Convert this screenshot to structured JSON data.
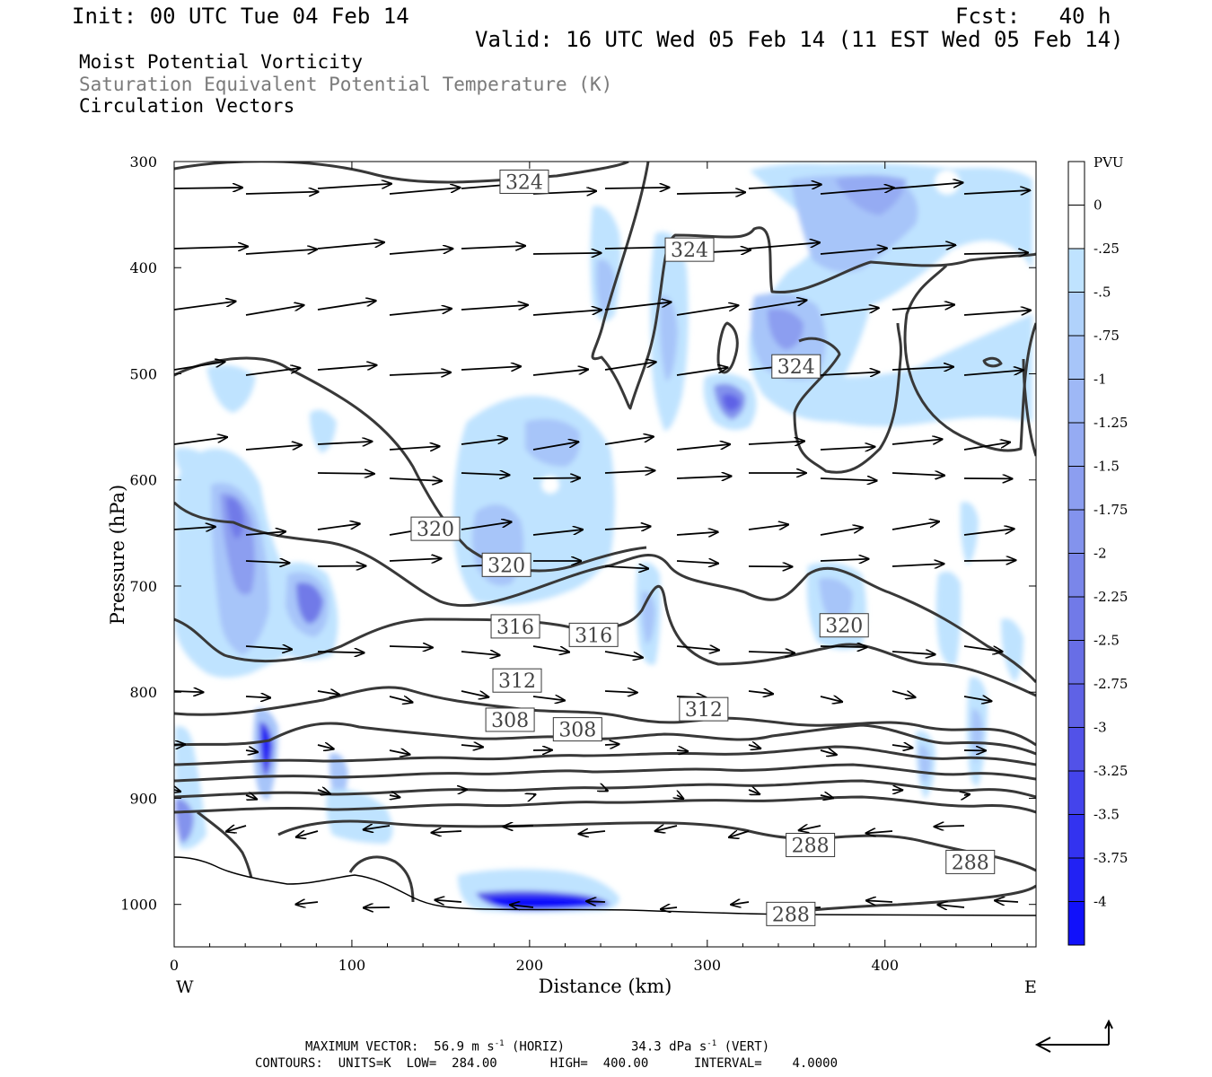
{
  "header": {
    "init": "Init: 00 UTC Tue 04 Feb 14",
    "fcst": "Fcst:   40 h",
    "valid": "Valid: 16 UTC Wed 05 Feb 14 (11 EST Wed 05 Feb 14)",
    "field1": "Moist Potential Vorticity",
    "field2": "Saturation Equivalent Potential Temperature (K)",
    "field3": "Circulation Vectors"
  },
  "chart_data": {
    "type": "cross-section",
    "xlabel": "Distance (km)",
    "ylabel": "Pressure (hPa)",
    "x_ticks": [
      0,
      100,
      200,
      300,
      400
    ],
    "y_ticks": [
      300,
      400,
      500,
      600,
      700,
      800,
      900,
      1000
    ],
    "xlim": [
      0,
      485
    ],
    "ylim": [
      300,
      1040
    ],
    "west_label": "W",
    "east_label": "E",
    "colorbar": {
      "title": "PVU",
      "labels": [
        "0",
        "-.25",
        "-.5",
        "-.75",
        "-1",
        "-1.25",
        "-1.5",
        "-1.75",
        "-2",
        "-2.25",
        "-2.5",
        "-2.75",
        "-3",
        "-3.25",
        "-3.5",
        "-3.75",
        "-4"
      ],
      "colors": [
        "#ffffff",
        "#ffffff",
        "#bfe3ff",
        "#b0d2fb",
        "#a7c5f9",
        "#9eb8f6",
        "#95abf3",
        "#8c9ef0",
        "#8393ed",
        "#7a86ea",
        "#717ae8",
        "#686ee6",
        "#5f62e6",
        "#5252e8",
        "#4444ec",
        "#3333f0",
        "#2222f4",
        "#1111fa"
      ]
    },
    "contour_labels": [
      {
        "text": "324",
        "x": 197,
        "p": 319
      },
      {
        "text": "324",
        "x": 290,
        "p": 383
      },
      {
        "text": "324",
        "x": 350,
        "p": 493
      },
      {
        "text": "320",
        "x": 147,
        "p": 646
      },
      {
        "text": "320",
        "x": 187,
        "p": 680
      },
      {
        "text": "320",
        "x": 377,
        "p": 737
      },
      {
        "text": "316",
        "x": 192,
        "p": 738
      },
      {
        "text": "316",
        "x": 236,
        "p": 746
      },
      {
        "text": "312",
        "x": 193,
        "p": 789
      },
      {
        "text": "312",
        "x": 298,
        "p": 816
      },
      {
        "text": "308",
        "x": 189,
        "p": 826
      },
      {
        "text": "308",
        "x": 227,
        "p": 835
      },
      {
        "text": "288",
        "x": 358,
        "p": 944
      },
      {
        "text": "288",
        "x": 448,
        "p": 960
      },
      {
        "text": "288",
        "x": 347,
        "p": 1009
      }
    ]
  },
  "footer": {
    "max_vector": "MAXIMUM VECTOR:  56.9 m s",
    "horiz": " (HORIZ)",
    "vert_val": "34.3 dPa s",
    "vert": " (VERT)",
    "sup": "-1",
    "contours": "CONTOURS:  UNITS=K  LOW=  284.00       HIGH=  400.00      INTERVAL=    4.0000"
  }
}
